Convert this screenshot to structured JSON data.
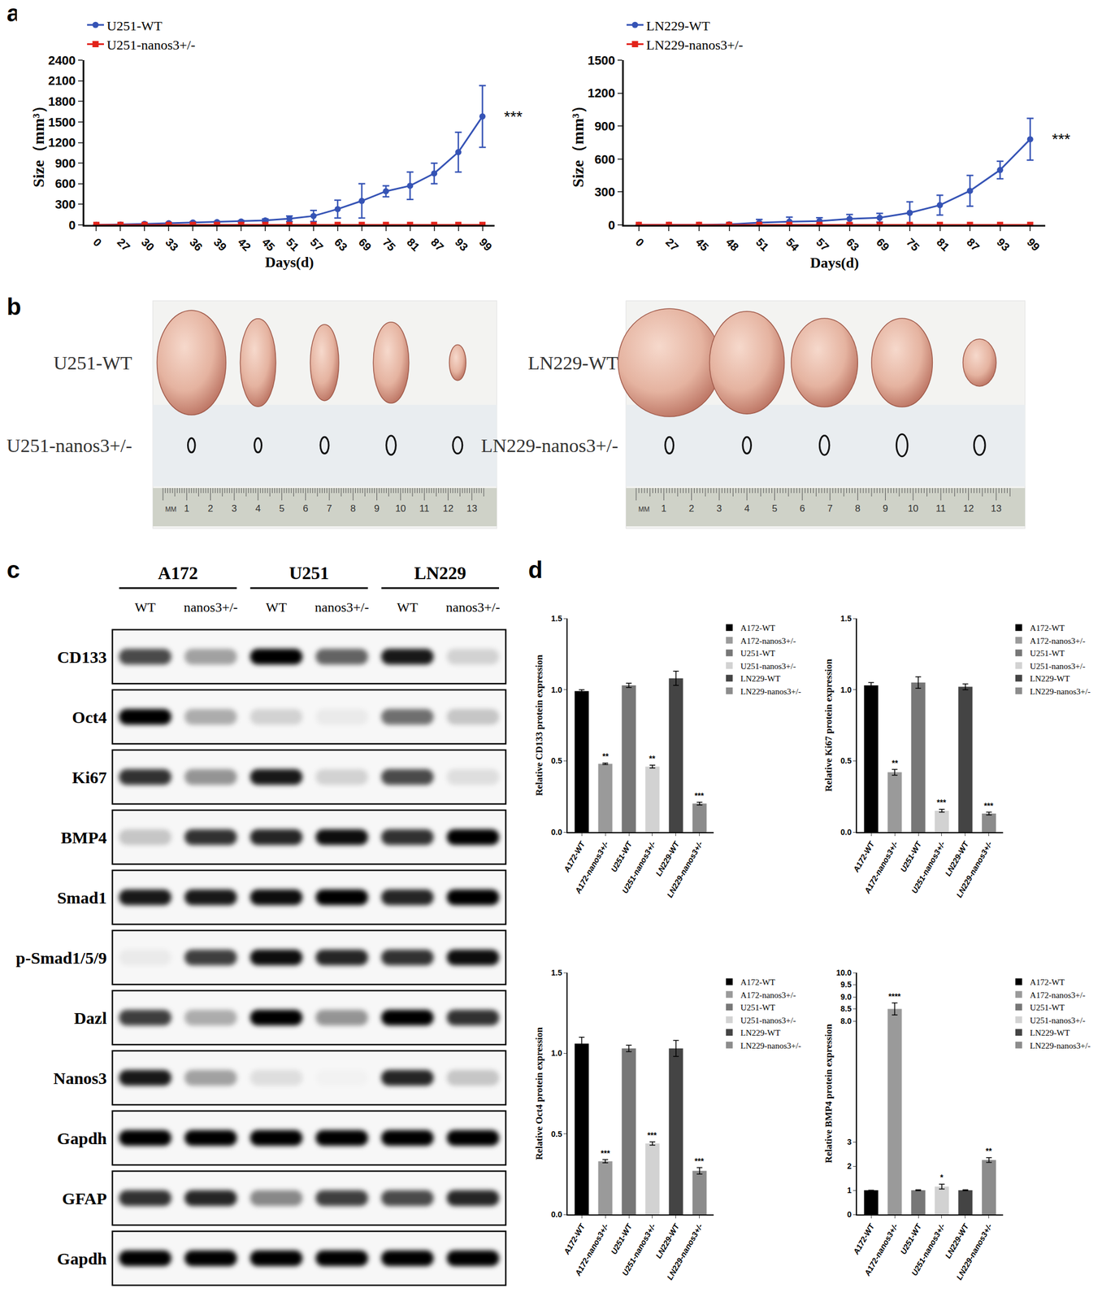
{
  "panel_labels": [
    "a",
    "b",
    "c",
    "d"
  ],
  "chart_data": [
    {
      "type": "line",
      "categories": [
        "0",
        "27",
        "30",
        "33",
        "36",
        "39",
        "42",
        "45",
        "51",
        "57",
        "63",
        "69",
        "75",
        "81",
        "87",
        "93",
        "99"
      ],
      "series": [
        {
          "name": "U251-WT",
          "color": "#3553b5",
          "marker": "circle",
          "values": [
            0,
            5,
            15,
            25,
            35,
            40,
            50,
            65,
            90,
            130,
            230,
            350,
            490,
            570,
            750,
            1060,
            1580
          ],
          "errors": [
            0,
            3,
            5,
            8,
            10,
            10,
            12,
            20,
            40,
            80,
            130,
            250,
            80,
            200,
            150,
            290,
            450
          ]
        },
        {
          "name": "U251-nanos3+/-",
          "color": "#e2231a",
          "marker": "square",
          "values": [
            0,
            0,
            0,
            0,
            0,
            0,
            0,
            0,
            0,
            0,
            0,
            0,
            0,
            0,
            0,
            0,
            0
          ]
        }
      ],
      "x_label": "Days(d)",
      "y_label": "Size（mm³）",
      "ylim": [
        0,
        2400
      ],
      "yticks": [
        0,
        300,
        600,
        900,
        1200,
        1500,
        1800,
        2100,
        2400
      ],
      "annotations": [
        "***"
      ],
      "legend": "top left",
      "grid": false
    },
    {
      "type": "line",
      "categories": [
        "0",
        "27",
        "45",
        "48",
        "51",
        "54",
        "57",
        "63",
        "69",
        "75",
        "81",
        "87",
        "93",
        "99"
      ],
      "series": [
        {
          "name": "LN229-WT",
          "color": "#3553b5",
          "marker": "circle",
          "values": [
            0,
            0,
            0,
            5,
            20,
            30,
            35,
            55,
            65,
            110,
            180,
            310,
            500,
            780
          ],
          "errors": [
            0,
            0,
            0,
            5,
            30,
            40,
            30,
            40,
            40,
            100,
            90,
            140,
            80,
            190
          ]
        },
        {
          "name": "LN229-nanos3+/-",
          "color": "#e2231a",
          "marker": "square",
          "values": [
            0,
            0,
            0,
            0,
            0,
            0,
            0,
            0,
            0,
            0,
            0,
            0,
            0,
            0
          ]
        }
      ],
      "x_label": "Days(d)",
      "y_label": "Size（mm³）",
      "ylim": [
        0,
        1500
      ],
      "yticks": [
        0,
        300,
        600,
        900,
        1200,
        1500
      ],
      "annotations": [
        "***"
      ],
      "legend": "top left",
      "grid": false
    },
    {
      "type": "bar",
      "categories": [
        "A172-WT",
        "A172-nanos3+/-",
        "U251-WT",
        "U251-nanos3+/-",
        "LN229-WT",
        "LN229-nanos3+/-"
      ],
      "values": [
        0.99,
        0.48,
        1.03,
        0.46,
        1.08,
        0.2
      ],
      "errors": [
        0.01,
        0.005,
        0.015,
        0.01,
        0.05,
        0.01
      ],
      "significance": [
        null,
        "**",
        null,
        "**",
        null,
        "***"
      ],
      "colors": [
        "#000000",
        "#9a9a9a",
        "#777777",
        "#d2d2d2",
        "#444444",
        "#8c8c8c"
      ],
      "y_label": "Relative CD133 protein expression",
      "ylim": [
        0,
        1.5
      ],
      "yticks": [
        {
          "value": 0,
          "label": "0.0"
        },
        {
          "value": 0.5,
          "label": "0.5"
        },
        {
          "value": 1,
          "label": "1.0"
        },
        {
          "value": 1.5,
          "label": "1.5"
        }
      ],
      "legend": "right",
      "grid": false
    },
    {
      "type": "bar",
      "categories": [
        "A172-WT",
        "A172-nanos3+/-",
        "U251-WT",
        "U251-nanos3+/-",
        "LN229-WT",
        "LN229-nanos3+/-"
      ],
      "values": [
        1.03,
        0.42,
        1.05,
        0.15,
        1.02,
        0.13
      ],
      "errors": [
        0.02,
        0.02,
        0.04,
        0.01,
        0.02,
        0.01
      ],
      "significance": [
        null,
        "**",
        null,
        "***",
        null,
        "***"
      ],
      "colors": [
        "#000000",
        "#9a9a9a",
        "#777777",
        "#d2d2d2",
        "#444444",
        "#8c8c8c"
      ],
      "y_label": "Relative Ki67 protein expression",
      "ylim": [
        0,
        1.5
      ],
      "yticks": [
        {
          "value": 0,
          "label": "0.0"
        },
        {
          "value": 0.5,
          "label": "0.5"
        },
        {
          "value": 1,
          "label": "1.0"
        },
        {
          "value": 1.5,
          "label": "1.5"
        }
      ],
      "legend": "right",
      "grid": false
    },
    {
      "type": "bar",
      "categories": [
        "A172-WT",
        "A172-nanos3+/-",
        "U251-WT",
        "U251-nanos3+/-",
        "LN229-WT",
        "LN229-nanos3+/-"
      ],
      "values": [
        1.06,
        0.33,
        1.03,
        0.44,
        1.03,
        0.27
      ],
      "errors": [
        0.04,
        0.01,
        0.02,
        0.01,
        0.05,
        0.02
      ],
      "significance": [
        null,
        "***",
        null,
        "***",
        null,
        "***"
      ],
      "colors": [
        "#000000",
        "#9a9a9a",
        "#777777",
        "#d2d2d2",
        "#444444",
        "#8c8c8c"
      ],
      "y_label": "Relative Oct4 protein expression",
      "ylim": [
        0,
        1.5
      ],
      "yticks": [
        {
          "value": 0,
          "label": "0.0"
        },
        {
          "value": 0.5,
          "label": "0.5"
        },
        {
          "value": 1,
          "label": "1.0"
        },
        {
          "value": 1.5,
          "label": "1.5"
        }
      ],
      "legend": "right",
      "grid": false
    },
    {
      "type": "bar",
      "categories": [
        "A172-WT",
        "A172-nanos3+/-",
        "U251-WT",
        "U251-nanos3+/-",
        "LN229-WT",
        "LN229-nanos3+/-"
      ],
      "values": [
        1,
        8.5,
        1,
        1.15,
        1,
        2.25
      ],
      "errors": [
        0,
        0.25,
        0.02,
        0.1,
        0.02,
        0.1
      ],
      "significance": [
        null,
        "****",
        null,
        "*",
        null,
        "**"
      ],
      "colors": [
        "#000000",
        "#9a9a9a",
        "#777777",
        "#d2d2d2",
        "#444444",
        "#8c8c8c"
      ],
      "y_label": "Relative BMP4 protein expression",
      "ylim": [
        0,
        10
      ],
      "yticks": [
        0,
        1,
        2,
        3,
        {
          "value": 8,
          "label": "8.0"
        },
        {
          "value": 8.5,
          "label": "8.5"
        },
        {
          "value": 9,
          "label": "9.0"
        },
        {
          "value": 9.5,
          "label": "9.5"
        },
        {
          "value": 10,
          "label": "10.0"
        }
      ],
      "legend": "right",
      "grid": false
    }
  ],
  "tumor_photos": {
    "ruler_labels": [
      "MM",
      "1",
      "2",
      "3",
      "4",
      "5",
      "6",
      "7",
      "8",
      "9",
      "10",
      "11",
      "12",
      "13"
    ],
    "photos": [
      {
        "rows": [
          {
            "label": "U251-WT",
            "marker": "photo",
            "tumors": [
              {
                "width_cm": 2.9,
                "height_cm": 4.4
              },
              {
                "width_cm": 1.5,
                "height_cm": 3.7
              },
              {
                "width_cm": 1.2,
                "height_cm": 3.2
              },
              {
                "width_cm": 1.5,
                "height_cm": 3.4
              },
              {
                "width_cm": 0.7,
                "height_cm": 1.5
              }
            ]
          },
          {
            "label": "U251-nanos3+/-",
            "marker": "outline",
            "tumors": [
              {
                "width_cm": 0.3,
                "height_cm": 0.6
              },
              {
                "width_cm": 0.3,
                "height_cm": 0.6
              },
              {
                "width_cm": 0.35,
                "height_cm": 0.7
              },
              {
                "width_cm": 0.4,
                "height_cm": 0.8
              },
              {
                "width_cm": 0.4,
                "height_cm": 0.7
              }
            ]
          }
        ]
      },
      {
        "rows": [
          {
            "label": "LN229-WT",
            "marker": "photo",
            "tumors": [
              {
                "width_cm": 3.7,
                "height_cm": 3.9
              },
              {
                "width_cm": 2.7,
                "height_cm": 3.7
              },
              {
                "width_cm": 2.4,
                "height_cm": 3.2
              },
              {
                "width_cm": 2.2,
                "height_cm": 3.2
              },
              {
                "width_cm": 1.2,
                "height_cm": 1.7
              }
            ]
          },
          {
            "label": "LN229-nanos3+/-",
            "marker": "outline",
            "tumors": [
              {
                "width_cm": 0.3,
                "height_cm": 0.6
              },
              {
                "width_cm": 0.3,
                "height_cm": 0.6
              },
              {
                "width_cm": 0.35,
                "height_cm": 0.7
              },
              {
                "width_cm": 0.4,
                "height_cm": 0.8
              },
              {
                "width_cm": 0.4,
                "height_cm": 0.7
              }
            ]
          }
        ]
      }
    ]
  },
  "western_blot": {
    "groups": [
      "A172",
      "U251",
      "LN229"
    ],
    "lanes": [
      "WT",
      "nanos3+/-"
    ],
    "rows": [
      {
        "label": "CD133",
        "band_intensity": [
          0.7,
          0.35,
          1.0,
          0.6,
          0.9,
          0.15
        ]
      },
      {
        "label": "Oct4",
        "band_intensity": [
          1.0,
          0.3,
          0.15,
          0.05,
          0.55,
          0.2
        ]
      },
      {
        "label": "Ki67",
        "band_intensity": [
          0.8,
          0.4,
          0.9,
          0.15,
          0.7,
          0.1
        ]
      },
      {
        "label": "BMP4",
        "band_intensity": [
          0.2,
          0.8,
          0.85,
          0.95,
          0.8,
          1.0
        ]
      },
      {
        "label": "Smad1",
        "band_intensity": [
          0.9,
          0.9,
          0.95,
          1.0,
          0.85,
          1.0
        ]
      },
      {
        "label": "p-Smad1/5/9",
        "band_intensity": [
          0.05,
          0.75,
          0.95,
          0.85,
          0.8,
          0.95
        ]
      },
      {
        "label": "Dazl",
        "band_intensity": [
          0.75,
          0.3,
          1.0,
          0.4,
          1.0,
          0.8
        ]
      },
      {
        "label": "Nanos3",
        "band_intensity": [
          0.9,
          0.35,
          0.1,
          0.02,
          0.85,
          0.2
        ]
      },
      {
        "label": "Gapdh",
        "band_intensity": [
          1.0,
          1.0,
          1.0,
          1.0,
          1.0,
          1.0
        ]
      },
      {
        "label": "GFAP",
        "band_intensity": [
          0.8,
          0.85,
          0.45,
          0.75,
          0.7,
          0.85
        ]
      },
      {
        "label": "Gapdh",
        "band_intensity": [
          1.0,
          1.0,
          1.0,
          1.0,
          1.0,
          1.0
        ]
      }
    ]
  }
}
